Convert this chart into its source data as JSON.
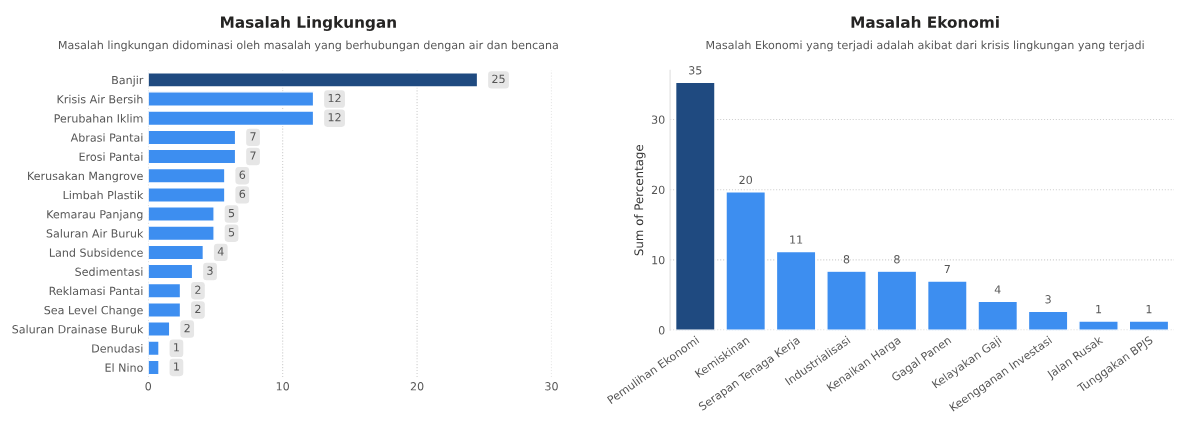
{
  "chart_data": [
    {
      "type": "bar",
      "orientation": "horizontal",
      "title": "Masalah Lingkungan",
      "subtitle": "Masalah lingkungan didominasi oleh masalah yang berhubungan dengan air dan bencana",
      "categories": [
        "Banjir",
        "Krisis Air Bersih",
        "Perubahan Iklim",
        "Abrasi Pantai",
        "Erosi Pantai",
        "Kerusakan Mangrove",
        "Limbah Plastik",
        "Kemarau Panjang",
        "Saluran Air Buruk",
        "Land Subsidence",
        "Sedimentasi",
        "Reklamasi Pantai",
        "Sea Level Change",
        "Saluran Drainase Buruk",
        "Denudasi",
        "El Nino"
      ],
      "values": [
        24.5,
        12.3,
        12.3,
        6.5,
        6.5,
        5.7,
        5.7,
        4.9,
        4.9,
        4.1,
        3.3,
        2.4,
        2.4,
        1.6,
        0.8,
        0.8
      ],
      "value_labels": [
        "25",
        "12",
        "12",
        "7",
        "7",
        "6",
        "6",
        "5",
        "5",
        "4",
        "3",
        "2",
        "2",
        "2",
        "1",
        "1"
      ],
      "colors": [
        "#1f4a80",
        "#3d8ef0",
        "#3d8ef0",
        "#3d8ef0",
        "#3d8ef0",
        "#3d8ef0",
        "#3d8ef0",
        "#3d8ef0",
        "#3d8ef0",
        "#3d8ef0",
        "#3d8ef0",
        "#3d8ef0",
        "#3d8ef0",
        "#3d8ef0",
        "#3d8ef0",
        "#3d8ef0"
      ],
      "xlim": [
        0,
        30
      ],
      "xticks": [
        0,
        10,
        20,
        30
      ],
      "grid": "x"
    },
    {
      "type": "bar",
      "title": "Masalah Ekonomi",
      "subtitle": "Masalah Ekonomi yang terjadi adalah akibat dari krisis lingkungan yang terjadi",
      "ylabel": "Sum of Percentage",
      "categories": [
        "Pemulihan Ekonomi",
        "Kemiskinan",
        "Serapan Tenaga Kerja",
        "Industrialisasi",
        "Kenaikan Harga",
        "Gagal Panen",
        "Kelayakan Gaji",
        "Keengganan Investasi",
        "Jalan Rusak",
        "Tunggakan BPJS"
      ],
      "values": [
        35.3,
        19.7,
        11.2,
        8.4,
        8.4,
        7.0,
        4.1,
        2.7,
        1.3,
        1.3
      ],
      "value_labels": [
        "35",
        "20",
        "11",
        "8",
        "8",
        "7",
        "4",
        "3",
        "1",
        "1"
      ],
      "colors": [
        "#1f4a80",
        "#3d8ef0",
        "#3d8ef0",
        "#3d8ef0",
        "#3d8ef0",
        "#3d8ef0",
        "#3d8ef0",
        "#3d8ef0",
        "#3d8ef0",
        "#3d8ef0"
      ],
      "ylim": [
        0,
        37
      ],
      "yticks": [
        0,
        10,
        20,
        30
      ],
      "grid": "y"
    }
  ]
}
